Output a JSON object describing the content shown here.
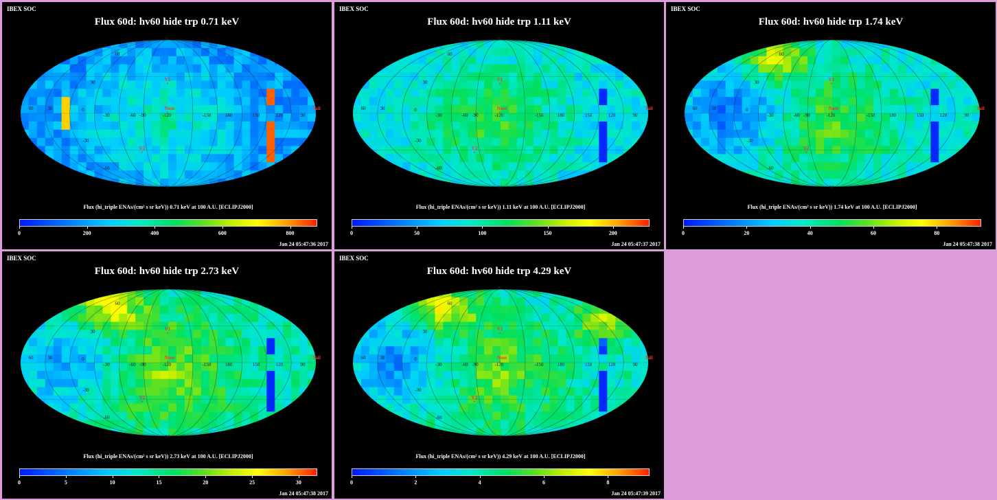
{
  "colors": {
    "background": "#dd9ddb",
    "panel": "#000000"
  },
  "panels": [
    {
      "label": "IBEX SOC",
      "title": "Flux 60d: hv60 hide trp 0.71 keV",
      "colorbar_title": "Flux (hi_triple ENAs/(cm² s sr keV)) 0.71 keV at 100 A.U. [ECLIPJ2000]",
      "ticks": [
        "0",
        "200",
        "400",
        "600",
        "800"
      ],
      "tick_values": [
        0,
        200,
        400,
        600,
        800
      ],
      "range": [
        0,
        880
      ],
      "timestamp": "Jan 24 05:47:36 2017",
      "base": 0.22
    },
    {
      "label": "IBEX SOC",
      "title": "Flux 60d: hv60 hide trp 1.11 keV",
      "colorbar_title": "Flux (hi_triple ENAs/(cm² s sr keV)) 1.11 keV at 100 A.U. [ECLIPJ2000]",
      "ticks": [
        "0",
        "50",
        "100",
        "150",
        "200"
      ],
      "tick_values": [
        0,
        50,
        100,
        150,
        200
      ],
      "range": [
        0,
        228
      ],
      "timestamp": "Jan 24 05:47:37 2017",
      "base": 0.36
    },
    {
      "label": "IBEX SOC",
      "title": "Flux 60d: hv60 hide trp 1.74 keV",
      "colorbar_title": "Flux (hi_triple ENAs/(cm² s sr keV)) 1.74 keV at 100 A.U. [ECLIPJ2000]",
      "ticks": [
        "0",
        "20",
        "40",
        "60",
        "80"
      ],
      "tick_values": [
        0,
        20,
        40,
        60,
        80
      ],
      "range": [
        0,
        94
      ],
      "timestamp": "Jan 24 05:47:38 2017",
      "base": 0.38
    },
    {
      "label": "IBEX SOC",
      "title": "Flux 60d: hv60 hide trp 2.73 keV",
      "colorbar_title": "Flux (hi_triple ENAs/(cm² s sr keV)) 2.73 keV at 100 A.U. [ECLIPJ2000]",
      "ticks": [
        "0",
        "5",
        "10",
        "15",
        "20",
        "25",
        "30"
      ],
      "tick_values": [
        0,
        5,
        10,
        15,
        20,
        25,
        30
      ],
      "range": [
        0,
        32
      ],
      "timestamp": "Jan 24 05:47:38 2017",
      "base": 0.44
    },
    {
      "label": "IBEX SOC",
      "title": "Flux 60d: hv60 hide trp 4.29 keV",
      "colorbar_title": "Flux (hi_triple ENAs/(cm² s sr keV)) 4.29 keV at 100 A.U. [ECLIPJ2000]",
      "ticks": [
        "0",
        "2",
        "4",
        "6",
        "8"
      ],
      "tick_values": [
        0,
        2,
        4,
        6,
        8
      ],
      "range": [
        0,
        9.3
      ],
      "timestamp": "Jan 24 05:47:39 2017",
      "base": 0.42
    }
  ],
  "map_labels": {
    "v1": "V1",
    "v2": "V2",
    "nose": "Nose",
    "tail": "Tail",
    "lon": [
      "60",
      "30",
      "0",
      "-30",
      "-60",
      "-90",
      "-120",
      "-150",
      "180",
      "150",
      "120",
      "90"
    ],
    "lat": [
      "60",
      "30",
      "-30",
      "-60"
    ],
    "pole_top": "90",
    "pole_bottom": "-90"
  }
}
